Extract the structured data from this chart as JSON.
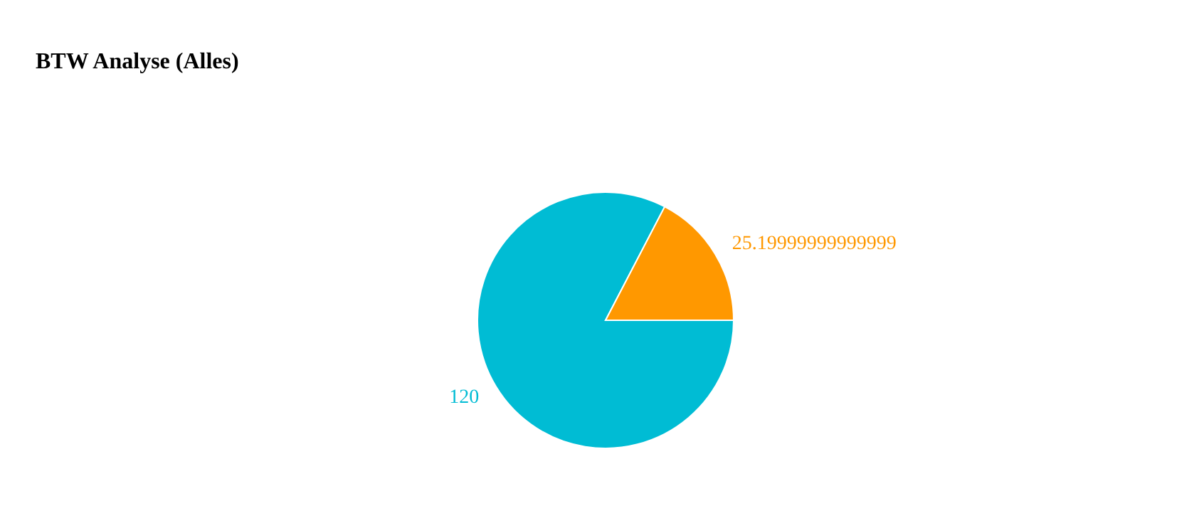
{
  "chart_data": {
    "type": "pie",
    "title": "BTW Analyse (Alles)",
    "categories": [
      null,
      null
    ],
    "values": [
      120,
      25.19999999999999
    ],
    "colors": [
      "#00bcd4",
      "#ff9800"
    ],
    "data_labels": true,
    "legend": false
  }
}
